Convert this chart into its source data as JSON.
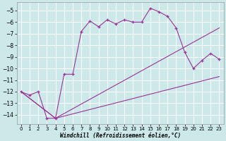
{
  "xlabel": "Windchill (Refroidissement éolien,°C)",
  "background_color": "#cce8e8",
  "grid_color": "#aacccc",
  "line_color": "#993399",
  "xlim": [
    -0.5,
    23.5
  ],
  "ylim": [
    -14.8,
    -4.3
  ],
  "yticks": [
    -14,
    -13,
    -12,
    -11,
    -10,
    -9,
    -8,
    -7,
    -6,
    -5
  ],
  "xticks": [
    0,
    1,
    2,
    3,
    4,
    5,
    6,
    7,
    8,
    9,
    10,
    11,
    12,
    13,
    14,
    15,
    16,
    17,
    18,
    19,
    20,
    21,
    22,
    23
  ],
  "line1_x": [
    0,
    1,
    2,
    3,
    4,
    5,
    6,
    7,
    8,
    9,
    10,
    11,
    12,
    13,
    14,
    15,
    16,
    17,
    18,
    19,
    20,
    21,
    22,
    23
  ],
  "line1_y": [
    -12.0,
    -12.3,
    -12.0,
    -14.3,
    -14.3,
    -10.5,
    -10.5,
    -6.8,
    -5.9,
    -6.4,
    -5.8,
    -6.15,
    -5.8,
    -6.0,
    -6.0,
    -4.8,
    -5.1,
    -5.5,
    -6.5,
    -8.6,
    -10.0,
    -9.3,
    -8.7,
    -9.2
  ],
  "line2_x": [
    0,
    4,
    23
  ],
  "line2_y": [
    -12.0,
    -14.3,
    -6.5
  ],
  "line3_x": [
    0,
    4,
    23
  ],
  "line3_y": [
    -12.0,
    -14.3,
    -10.7
  ]
}
